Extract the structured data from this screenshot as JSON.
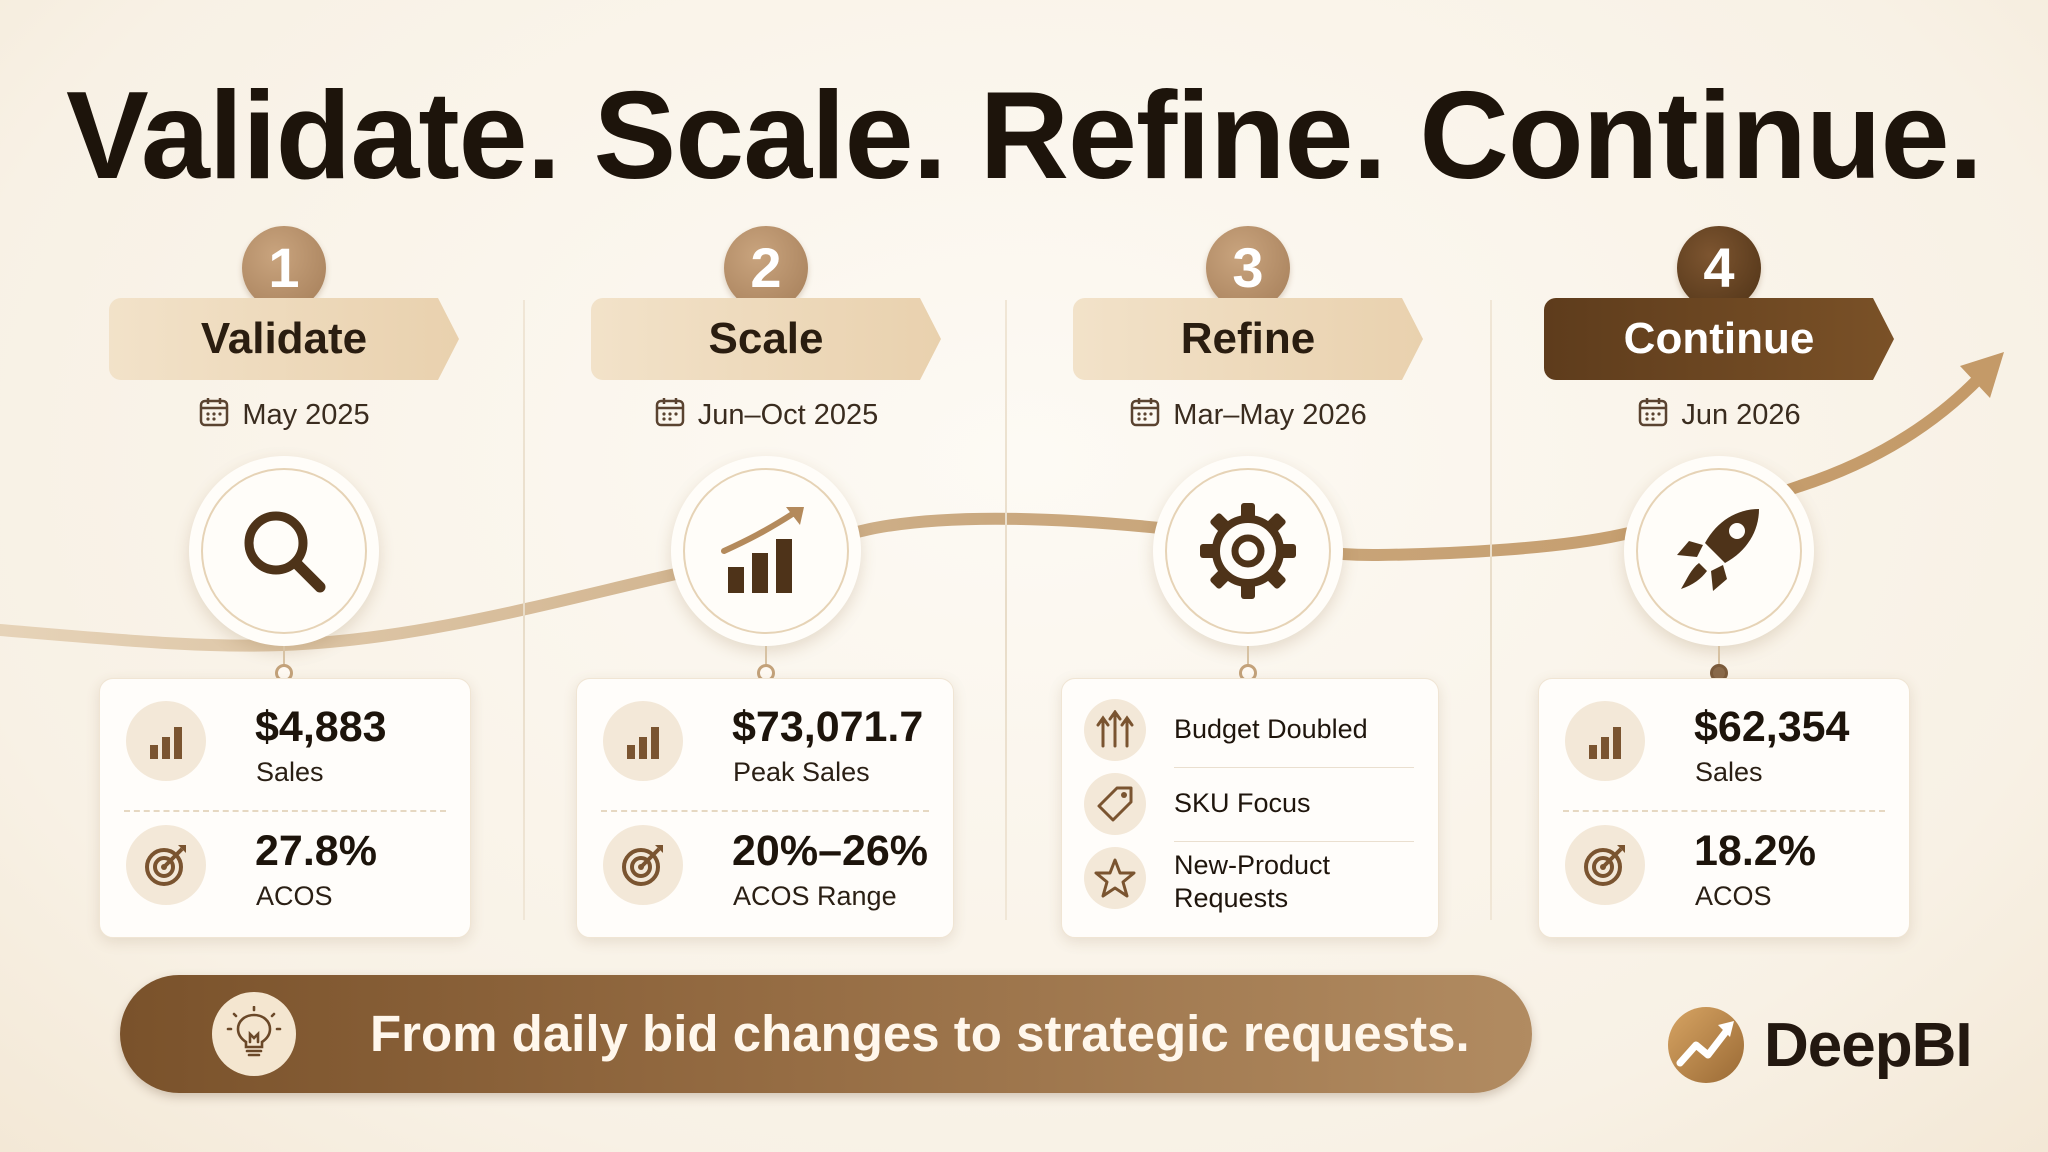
{
  "title": "Validate. Scale. Refine. Continue.",
  "steps": [
    {
      "number": "1",
      "name": "Validate",
      "date": "May 2025",
      "icon": "magnifier-icon",
      "metrics": [
        {
          "value": "$4,883",
          "label": "Sales",
          "icon": "bar-chart-icon"
        },
        {
          "value": "27.8%",
          "label": "ACOS",
          "icon": "target-icon"
        }
      ]
    },
    {
      "number": "2",
      "name": "Scale",
      "date": "Jun–Oct 2025",
      "icon": "growth-chart-icon",
      "metrics": [
        {
          "value": "$73,071.7",
          "label": "Peak Sales",
          "icon": "bar-chart-icon"
        },
        {
          "value": "20%–26%",
          "label": "ACOS Range",
          "icon": "target-icon"
        }
      ]
    },
    {
      "number": "3",
      "name": "Refine",
      "date": "Mar–May 2026",
      "icon": "gear-icon",
      "items": [
        {
          "text": "Budget Doubled",
          "icon": "arrows-up-icon"
        },
        {
          "text": "SKU Focus",
          "icon": "tag-icon"
        },
        {
          "text": "New-Product Requests",
          "icon": "star-icon"
        }
      ]
    },
    {
      "number": "4",
      "name": "Continue",
      "date": "Jun 2026",
      "icon": "rocket-icon",
      "metrics": [
        {
          "value": "$62,354",
          "label": "Sales",
          "icon": "bar-chart-icon"
        },
        {
          "value": "18.2%",
          "label": "ACOS",
          "icon": "target-icon"
        }
      ]
    }
  ],
  "banner": {
    "text": "From daily bid changes to strategic requests.",
    "icon": "lightbulb-icon"
  },
  "brand": {
    "name": "DeepBI",
    "icon": "deepbi-logo-icon"
  },
  "colors": {
    "accent": "#a47d58",
    "dark": "#5e3c1c",
    "background": "#fbf7f0"
  }
}
